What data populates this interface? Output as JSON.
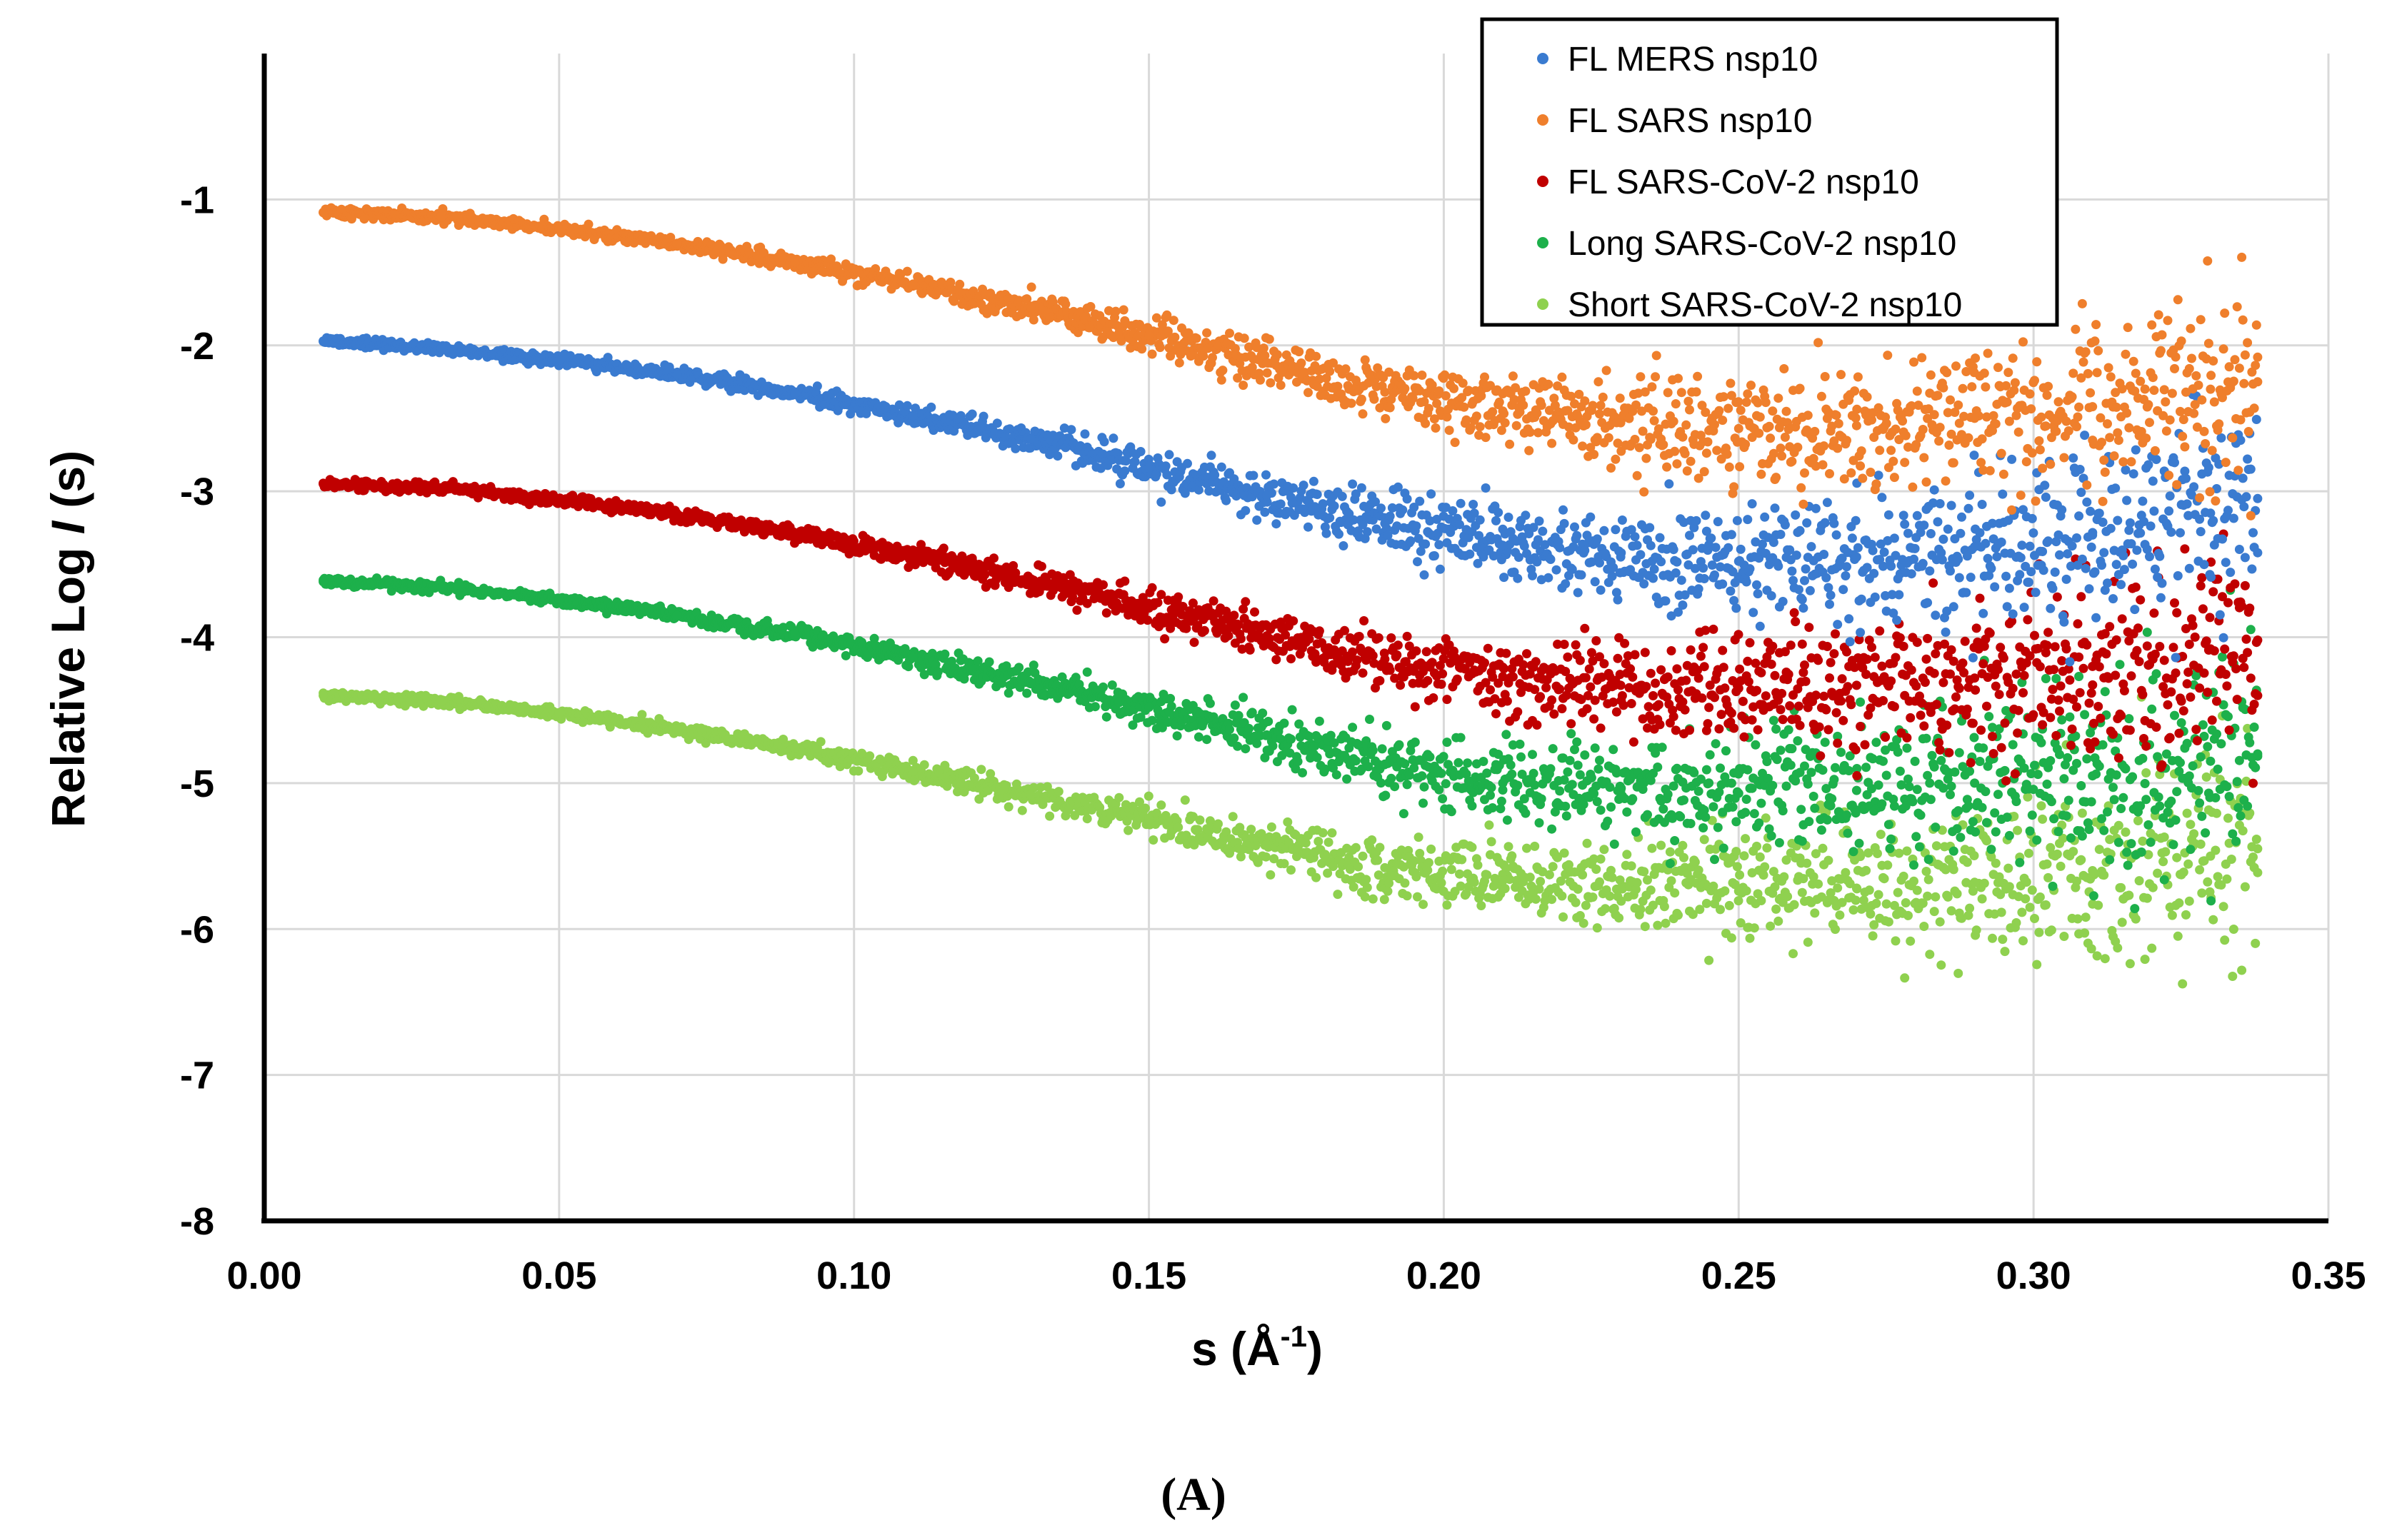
{
  "chart_data": {
    "type": "scatter",
    "title": "",
    "panel_label": "(A)",
    "xlabel": {
      "main": "s (Å",
      "sup": "-1",
      "close": ")"
    },
    "ylabel": {
      "main": "Relative Log ",
      "italic": "I",
      "close": " (s)"
    },
    "xlim": [
      0.0,
      0.35
    ],
    "ylim": [
      -8,
      0
    ],
    "xticks": [
      {
        "value": 0.0,
        "label": "0.00"
      },
      {
        "value": 0.05,
        "label": "0.05"
      },
      {
        "value": 0.1,
        "label": "0.10"
      },
      {
        "value": 0.15,
        "label": "0.15"
      },
      {
        "value": 0.2,
        "label": "0.20"
      },
      {
        "value": 0.25,
        "label": "0.25"
      },
      {
        "value": 0.3,
        "label": "0.30"
      },
      {
        "value": 0.35,
        "label": "0.35"
      }
    ],
    "yticks": [
      {
        "value": -1,
        "label": "-1"
      },
      {
        "value": -2,
        "label": "-2"
      },
      {
        "value": -3,
        "label": "-3"
      },
      {
        "value": -4,
        "label": "-4"
      },
      {
        "value": -5,
        "label": "-5"
      },
      {
        "value": -6,
        "label": "-6"
      },
      {
        "value": -7,
        "label": "-7"
      },
      {
        "value": -8,
        "label": "-8"
      }
    ],
    "grid": true,
    "legend_position": "top-right",
    "series": [
      {
        "name": "FL MERS nsp10",
        "color": "#3a7bd0",
        "s": [
          0.01,
          0.03,
          0.05,
          0.07,
          0.09,
          0.11,
          0.13,
          0.15,
          0.17,
          0.19,
          0.21,
          0.23,
          0.25,
          0.27,
          0.29,
          0.31,
          0.33,
          0.338
        ],
        "log_I": [
          -1.97,
          -2.02,
          -2.1,
          -2.2,
          -2.33,
          -2.48,
          -2.64,
          -2.84,
          -3.03,
          -3.22,
          -3.37,
          -3.45,
          -3.48,
          -3.45,
          -3.38,
          -3.3,
          -3.15,
          -3.05
        ]
      },
      {
        "name": "FL SARS nsp10",
        "color": "#ef7f2c",
        "s": [
          0.01,
          0.03,
          0.05,
          0.07,
          0.09,
          0.11,
          0.13,
          0.15,
          0.17,
          0.19,
          0.21,
          0.23,
          0.25,
          0.27,
          0.29,
          0.31,
          0.33,
          0.338
        ],
        "log_I": [
          -1.09,
          -1.12,
          -1.2,
          -1.3,
          -1.43,
          -1.58,
          -1.74,
          -1.93,
          -2.12,
          -2.32,
          -2.45,
          -2.53,
          -2.57,
          -2.55,
          -2.5,
          -2.42,
          -2.3,
          -2.25
        ]
      },
      {
        "name": "FL SARS-CoV-2 nsp10",
        "color": "#c00000",
        "s": [
          0.01,
          0.03,
          0.05,
          0.07,
          0.09,
          0.11,
          0.13,
          0.15,
          0.17,
          0.19,
          0.21,
          0.23,
          0.25,
          0.27,
          0.29,
          0.31,
          0.33,
          0.338
        ],
        "log_I": [
          -2.95,
          -2.98,
          -3.06,
          -3.16,
          -3.29,
          -3.44,
          -3.6,
          -3.8,
          -3.99,
          -4.15,
          -4.27,
          -4.33,
          -4.35,
          -4.33,
          -4.28,
          -4.2,
          -4.08,
          -4.02
        ]
      },
      {
        "name": "Long SARS-CoV-2 nsp10",
        "color": "#1db04b",
        "s": [
          0.01,
          0.03,
          0.05,
          0.07,
          0.09,
          0.11,
          0.13,
          0.15,
          0.17,
          0.19,
          0.21,
          0.23,
          0.25,
          0.27,
          0.29,
          0.31,
          0.33,
          0.338
        ],
        "log_I": [
          -3.62,
          -3.66,
          -3.74,
          -3.85,
          -3.98,
          -4.14,
          -4.31,
          -4.48,
          -4.67,
          -4.87,
          -5.0,
          -5.05,
          -5.07,
          -5.05,
          -5.0,
          -4.95,
          -4.85,
          -4.8
        ]
      },
      {
        "name": "Short SARS-CoV-2 nsp10",
        "color": "#8fd14f",
        "s": [
          0.01,
          0.03,
          0.05,
          0.07,
          0.09,
          0.11,
          0.13,
          0.15,
          0.17,
          0.19,
          0.21,
          0.23,
          0.25,
          0.27,
          0.29,
          0.31,
          0.33,
          0.338
        ],
        "log_I": [
          -4.4,
          -4.44,
          -4.52,
          -4.63,
          -4.76,
          -4.92,
          -5.08,
          -5.25,
          -5.42,
          -5.58,
          -5.67,
          -5.72,
          -5.74,
          -5.72,
          -5.68,
          -5.6,
          -5.5,
          -5.45
        ]
      }
    ]
  }
}
